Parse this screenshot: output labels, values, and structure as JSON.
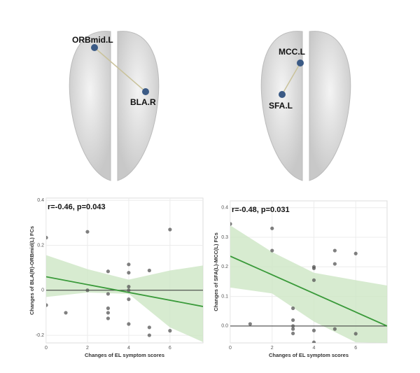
{
  "brains": [
    {
      "nodes": [
        "ORBmid.L",
        "BLA.R"
      ]
    },
    {
      "nodes": [
        "MCC.L",
        "SFA.L"
      ]
    }
  ],
  "chart_data": [
    {
      "type": "scatter",
      "annotation": "r=-0.46, p=0.043",
      "x_label": "Changes of EL symptom scores",
      "y_label": "Changes of BLA(R)-ORBmid(L) FCs",
      "xlim": [
        0,
        7.6
      ],
      "ylim": [
        -0.234,
        0.41
      ],
      "xticks": [
        0,
        2,
        4,
        6
      ],
      "yticks": [
        -0.2,
        0,
        0.2,
        0.4
      ],
      "grid": true,
      "hline": 0,
      "point_color": "#555555",
      "fit_color": "#3a9a3a",
      "band_color": "#cde6c4",
      "x": [
        0,
        0,
        0.95,
        2,
        2,
        3,
        3,
        3,
        3,
        3,
        4,
        4,
        4,
        4,
        4,
        4,
        5,
        5,
        5,
        6,
        6
      ],
      "y": [
        0.234,
        -0.066,
        -0.1,
        0.26,
        0.0,
        0.084,
        -0.016,
        -0.08,
        -0.1,
        -0.125,
        0.115,
        0.078,
        0.016,
        0.0,
        -0.04,
        -0.15,
        0.088,
        -0.165,
        -0.2,
        0.27,
        -0.18
      ],
      "fit": {
        "x": [
          0,
          7.6
        ],
        "y": [
          0.06,
          -0.072
        ]
      },
      "band": {
        "x": [
          0,
          2,
          4,
          6,
          7.6
        ],
        "upper": [
          0.156,
          0.094,
          0.047,
          0.088,
          0.11
        ],
        "lower": [
          -0.03,
          -0.01,
          -0.016,
          -0.165,
          -0.23
        ]
      }
    },
    {
      "type": "scatter",
      "annotation": "r=-0.48, p=0.031",
      "x_label": "Changes of EL symptom scores",
      "y_label": "Changes of SFA(L)-MCC(L) FCs",
      "xlim": [
        0,
        7.5
      ],
      "ylim": [
        -0.057,
        0.423
      ],
      "xticks": [
        0,
        2,
        4,
        6
      ],
      "yticks": [
        {
          "value": 0,
          "label": "0.0"
        },
        0.1,
        0.2,
        0.3,
        0.4
      ],
      "grid": true,
      "hline": 0,
      "point_color": "#555555",
      "fit_color": "#3a9a3a",
      "band_color": "#cde6c4",
      "x": [
        0,
        0.95,
        2,
        2,
        3,
        3,
        3,
        3,
        3,
        4,
        4,
        4,
        4,
        4,
        5,
        5,
        5,
        6,
        6
      ],
      "y": [
        0.345,
        0.007,
        0.33,
        0.255,
        0.06,
        0.02,
        0.0,
        -0.01,
        -0.025,
        0.2,
        0.195,
        0.155,
        -0.015,
        -0.055,
        0.255,
        0.21,
        -0.01,
        0.245,
        -0.026
      ],
      "fit": {
        "x": [
          0,
          7.5
        ],
        "y": [
          0.236,
          0
        ]
      },
      "band": {
        "x": [
          0,
          2,
          4,
          6,
          7.5
        ],
        "upper": [
          0.34,
          0.25,
          0.18,
          0.155,
          0.137
        ],
        "lower": [
          0.13,
          0.11,
          0.015,
          -0.055,
          -0.057
        ]
      }
    }
  ]
}
